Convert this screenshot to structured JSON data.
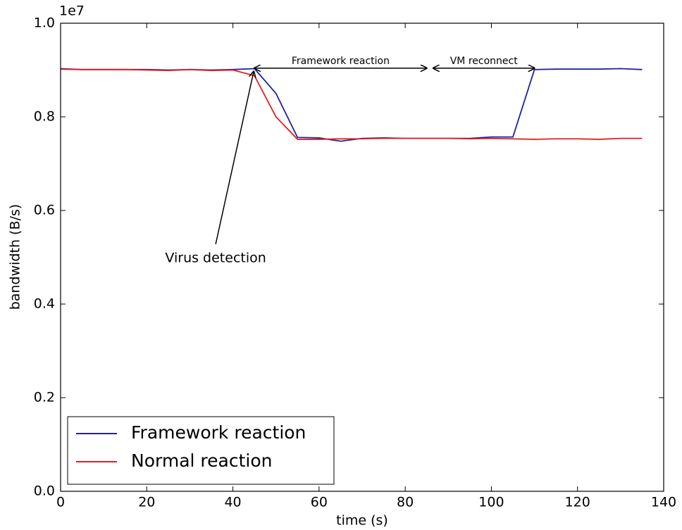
{
  "chart_data": {
    "type": "line",
    "xlabel": "time (s)",
    "ylabel": "bandwidth (B/s)",
    "y_offset_label": "1e7",
    "x": [
      0,
      5,
      10,
      15,
      20,
      25,
      30,
      35,
      40,
      45,
      50,
      55,
      60,
      65,
      70,
      75,
      80,
      85,
      90,
      95,
      100,
      105,
      110,
      115,
      120,
      125,
      130,
      135
    ],
    "series": [
      {
        "name": "Framework reaction",
        "color": "#2020a0",
        "values": [
          0.903,
          0.901,
          0.901,
          0.901,
          0.901,
          0.9,
          0.901,
          0.9,
          0.901,
          0.903,
          0.85,
          0.756,
          0.755,
          0.748,
          0.754,
          0.755,
          0.754,
          0.754,
          0.754,
          0.754,
          0.757,
          0.757,
          0.901,
          0.902,
          0.902,
          0.902,
          0.903,
          0.901
        ]
      },
      {
        "name": "Normal reaction",
        "color": "#e02020",
        "values": [
          0.902,
          0.901,
          0.901,
          0.901,
          0.9,
          0.899,
          0.901,
          0.899,
          0.9,
          0.888,
          0.8,
          0.752,
          0.752,
          0.753,
          0.753,
          0.754,
          0.754,
          0.754,
          0.754,
          0.753,
          0.754,
          0.753,
          0.752,
          0.753,
          0.753,
          0.752,
          0.754,
          0.754
        ]
      }
    ],
    "xlim": [
      0,
      140
    ],
    "xticks": [
      0,
      20,
      40,
      60,
      80,
      100,
      120,
      140
    ],
    "ylim": [
      0,
      1
    ],
    "yticks": [
      {
        "value": 0,
        "label": "0.0"
      },
      0.2,
      0.4,
      0.6,
      0.8,
      {
        "value": 1,
        "label": "1.0"
      }
    ],
    "legend": "lower left",
    "annotations": [
      {
        "text": "Virus detection",
        "xy": [
          45,
          0.9
        ],
        "xytext": [
          36,
          0.51
        ]
      },
      {
        "text": "Framework reaction",
        "span": [
          45,
          85
        ],
        "y": 0.904
      },
      {
        "text": "VM reconnect",
        "span": [
          86.5,
          110
        ],
        "y": 0.904
      }
    ]
  }
}
